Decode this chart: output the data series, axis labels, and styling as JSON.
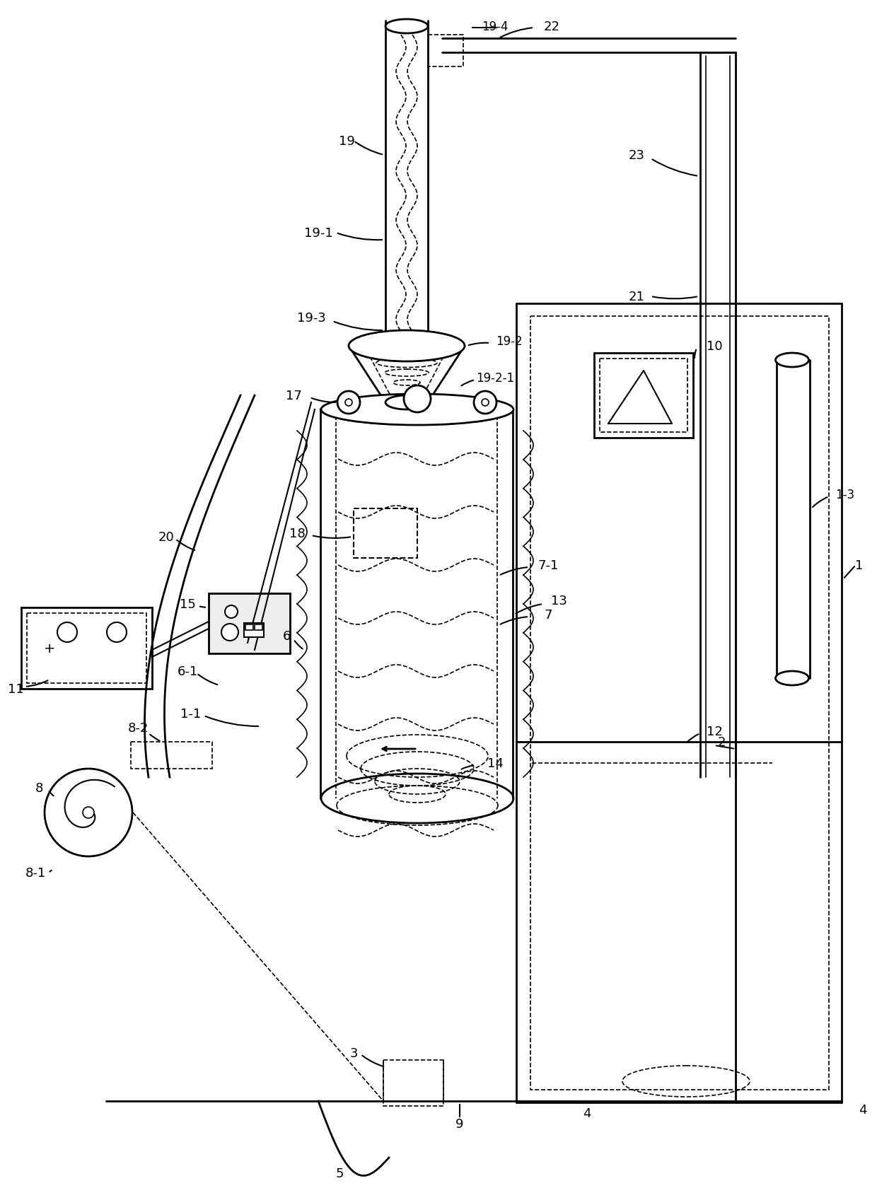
{
  "bg_color": "#ffffff",
  "line_color": "#000000",
  "figsize": [
    12.4,
    16.81
  ],
  "dpi": 100
}
